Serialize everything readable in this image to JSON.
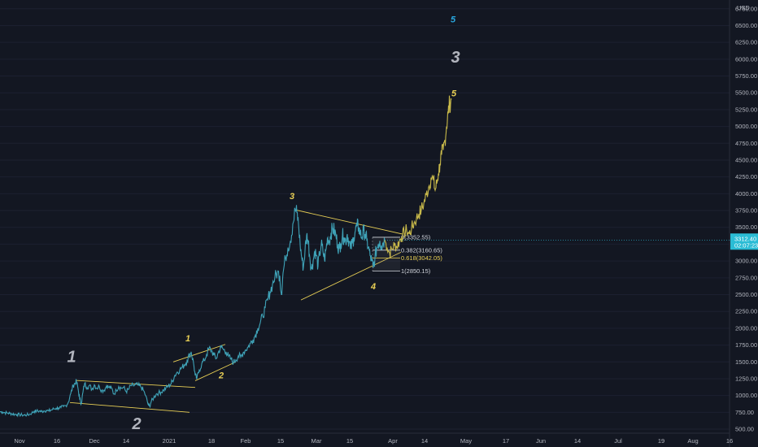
{
  "chart_data": {
    "type": "line",
    "currency": "USD",
    "x_ticks": [
      "Nov",
      "16",
      "Dec",
      "14",
      "2021",
      "18",
      "Feb",
      "15",
      "Mar",
      "15",
      "Apr",
      "14",
      "May",
      "17",
      "Jun",
      "14",
      "Jul",
      "19",
      "Aug",
      "16"
    ],
    "y_ticks": [
      "500.00",
      "750.00",
      "1000.00",
      "1250.00",
      "1500.00",
      "1750.00",
      "2000.00",
      "2250.00",
      "2500.00",
      "2750.00",
      "3000.00",
      "3250.00",
      "3500.00",
      "3750.00",
      "4000.00",
      "4250.00",
      "4500.00",
      "4750.00",
      "5000.00",
      "5250.00",
      "5500.00",
      "5750.00",
      "6000.00",
      "6250.00",
      "6500.00",
      "6750.00"
    ],
    "ylim": [
      440,
      6880
    ],
    "price_now": {
      "value": "3312.40",
      "countdown": "02:07:23"
    },
    "colors": {
      "historical": "#3fa3b8",
      "projection": "#c8b94a",
      "annotation": "#e8cf55",
      "background": "#131722",
      "price_tag": "#2abcd5"
    },
    "history": [
      [
        0,
        760
      ],
      [
        3,
        755
      ],
      [
        6,
        745
      ],
      [
        9,
        740
      ],
      [
        12,
        735
      ],
      [
        15,
        728
      ],
      [
        18,
        722
      ],
      [
        21,
        718
      ],
      [
        24,
        714
      ],
      [
        27,
        712
      ],
      [
        30,
        708
      ],
      [
        33,
        712
      ],
      [
        36,
        718
      ],
      [
        39,
        740
      ],
      [
        42,
        765
      ],
      [
        45,
        770
      ],
      [
        48,
        768
      ],
      [
        51,
        762
      ],
      [
        54,
        772
      ],
      [
        57,
        780
      ],
      [
        60,
        770
      ],
      [
        63,
        785
      ],
      [
        66,
        800
      ],
      [
        69,
        810
      ],
      [
        72,
        815
      ],
      [
        75,
        820
      ],
      [
        78,
        835
      ],
      [
        81,
        850
      ],
      [
        84,
        900
      ],
      [
        87,
        1030
      ],
      [
        90,
        1150
      ],
      [
        92,
        1180
      ],
      [
        94,
        1210
      ],
      [
        96,
        1100
      ],
      [
        98,
        950
      ],
      [
        100,
        880
      ],
      [
        102,
        1050
      ],
      [
        104,
        1180
      ],
      [
        107,
        1120
      ],
      [
        110,
        1150
      ],
      [
        113,
        1090
      ],
      [
        116,
        1160
      ],
      [
        119,
        1110
      ],
      [
        122,
        1140
      ],
      [
        125,
        1075
      ],
      [
        128,
        1080
      ],
      [
        131,
        1145
      ],
      [
        134,
        1120
      ],
      [
        137,
        1110
      ],
      [
        140,
        1020
      ],
      [
        143,
        1080
      ],
      [
        146,
        1135
      ],
      [
        149,
        1110
      ],
      [
        152,
        1120
      ],
      [
        155,
        1060
      ],
      [
        158,
        1090
      ],
      [
        161,
        1150
      ],
      [
        164,
        1145
      ],
      [
        167,
        1165
      ],
      [
        170,
        1150
      ],
      [
        173,
        1130
      ],
      [
        176,
        1085
      ],
      [
        179,
        1000
      ],
      [
        182,
        870
      ],
      [
        184,
        840
      ],
      [
        186,
        910
      ],
      [
        189,
        970
      ],
      [
        192,
        1020
      ],
      [
        195,
        1040
      ],
      [
        198,
        1050
      ],
      [
        201,
        1080
      ],
      [
        204,
        1110
      ],
      [
        207,
        1140
      ],
      [
        210,
        1170
      ],
      [
        212,
        1220
      ],
      [
        215,
        1300
      ],
      [
        218,
        1350
      ],
      [
        221,
        1380
      ],
      [
        224,
        1420
      ],
      [
        227,
        1460
      ],
      [
        230,
        1520
      ],
      [
        233,
        1600
      ],
      [
        235,
        1650
      ],
      [
        238,
        1480
      ],
      [
        240,
        1300
      ],
      [
        242,
        1250
      ],
      [
        245,
        1380
      ],
      [
        248,
        1470
      ],
      [
        251,
        1520
      ],
      [
        254,
        1610
      ],
      [
        257,
        1700
      ],
      [
        260,
        1670
      ],
      [
        263,
        1600
      ],
      [
        266,
        1550
      ],
      [
        269,
        1660
      ],
      [
        272,
        1720
      ],
      [
        275,
        1680
      ],
      [
        278,
        1650
      ],
      [
        281,
        1580
      ],
      [
        284,
        1540
      ],
      [
        287,
        1490
      ],
      [
        290,
        1530
      ],
      [
        293,
        1590
      ],
      [
        296,
        1570
      ],
      [
        299,
        1640
      ],
      [
        302,
        1680
      ],
      [
        305,
        1720
      ],
      [
        308,
        1780
      ],
      [
        311,
        1830
      ],
      [
        314,
        1900
      ],
      [
        317,
        2000
      ],
      [
        320,
        2080
      ],
      [
        323,
        2180
      ],
      [
        326,
        2300
      ],
      [
        329,
        2420
      ],
      [
        332,
        2540
      ],
      [
        335,
        2650
      ],
      [
        338,
        2760
      ],
      [
        341,
        2830
      ],
      [
        344,
        2780
      ],
      [
        346,
        2500
      ],
      [
        348,
        2820
      ],
      [
        351,
        3050
      ],
      [
        354,
        3200
      ],
      [
        357,
        3300
      ],
      [
        360,
        3550
      ],
      [
        363,
        3760
      ],
      [
        365,
        3720
      ],
      [
        367,
        3550
      ],
      [
        369,
        3250
      ],
      [
        371,
        3050
      ],
      [
        373,
        2900
      ],
      [
        375,
        3150
      ],
      [
        377,
        3380
      ],
      [
        379,
        3300
      ],
      [
        381,
        3050
      ],
      [
        383,
        2880
      ],
      [
        385,
        3000
      ],
      [
        387,
        3150
      ],
      [
        389,
        3080
      ],
      [
        391,
        2920
      ],
      [
        393,
        3100
      ],
      [
        395,
        3250
      ],
      [
        397,
        3150
      ],
      [
        399,
        3020
      ],
      [
        401,
        3180
      ],
      [
        403,
        3350
      ],
      [
        405,
        3300
      ],
      [
        407,
        3420
      ],
      [
        409,
        3480
      ],
      [
        411,
        3450
      ],
      [
        413,
        3380
      ],
      [
        415,
        3250
      ],
      [
        417,
        3180
      ],
      [
        419,
        3260
      ],
      [
        421,
        3380
      ],
      [
        423,
        3350
      ],
      [
        425,
        3300
      ],
      [
        427,
        3400
      ],
      [
        429,
        3300
      ],
      [
        431,
        3180
      ],
      [
        433,
        3260
      ],
      [
        435,
        3350
      ],
      [
        437,
        3450
      ],
      [
        439,
        3520
      ],
      [
        441,
        3500
      ],
      [
        443,
        3410
      ],
      [
        445,
        3350
      ],
      [
        447,
        3450
      ],
      [
        449,
        3400
      ],
      [
        451,
        3300
      ],
      [
        453,
        3200
      ],
      [
        455,
        3080
      ],
      [
        457,
        3000
      ],
      [
        459,
        2900
      ],
      [
        461,
        3050
      ],
      [
        463,
        3180
      ],
      [
        465,
        3250
      ],
      [
        467,
        3300
      ],
      [
        469,
        3230
      ],
      [
        471,
        3270
      ],
      [
        473,
        3312
      ]
    ],
    "projection": [
      [
        473,
        3312
      ],
      [
        476,
        3200
      ],
      [
        479,
        3120
      ],
      [
        482,
        3180
      ],
      [
        485,
        3240
      ],
      [
        488,
        3210
      ],
      [
        491,
        3300
      ],
      [
        494,
        3360
      ],
      [
        497,
        3420
      ],
      [
        500,
        3460
      ],
      [
        503,
        3400
      ],
      [
        506,
        3480
      ],
      [
        509,
        3560
      ],
      [
        512,
        3630
      ],
      [
        515,
        3700
      ],
      [
        518,
        3760
      ],
      [
        521,
        3850
      ],
      [
        524,
        3980
      ],
      [
        527,
        4100
      ],
      [
        530,
        4240
      ],
      [
        533,
        4200
      ],
      [
        535,
        4050
      ],
      [
        537,
        4150
      ],
      [
        539,
        4300
      ],
      [
        541,
        4450
      ],
      [
        543,
        4580
      ],
      [
        545,
        4650
      ],
      [
        547,
        4800
      ],
      [
        549,
        5000
      ],
      [
        551,
        5200
      ],
      [
        553,
        5350
      ],
      [
        555,
        5400
      ]
    ],
    "triangle_lines": [
      {
        "from": [
          363,
          3760
        ],
        "to": [
          495,
          3400
        ]
      },
      {
        "from": [
          370,
          2420
        ],
        "to": [
          493,
          3130
        ]
      }
    ],
    "channels": [
      {
        "from": [
          93,
          1225
        ],
        "to": [
          240,
          1120
        ]
      },
      {
        "from": [
          86,
          895
        ],
        "to": [
          233,
          750
        ]
      },
      {
        "from": [
          213,
          1500
        ],
        "to": [
          277,
          1760
        ]
      },
      {
        "from": [
          240,
          1220
        ],
        "to": [
          290,
          1500
        ]
      }
    ],
    "fib_levels": [
      {
        "label": "0(3352.55)",
        "value": 3352.55,
        "color": "#d1d4dc"
      },
      {
        "label": "0.382(3160.65)",
        "value": 3160.65,
        "color": "#d1d4dc"
      },
      {
        "label": "0.618(3042.05)",
        "value": 3042.05,
        "color": "#e8cf55"
      },
      {
        "label": "1(2850.15)",
        "value": 2850.15,
        "color": "#d1d4dc"
      }
    ],
    "wave_labels": [
      {
        "text": "1",
        "x": 88,
        "y": 1500,
        "style": "white"
      },
      {
        "text": "2",
        "x": 168,
        "y": 500,
        "style": "white"
      },
      {
        "text": "3",
        "x": 560,
        "y": 5950,
        "style": "white"
      },
      {
        "text": "1",
        "x": 231,
        "y": 1805,
        "style": "yellow"
      },
      {
        "text": "2",
        "x": 272,
        "y": 1255,
        "style": "yellow"
      },
      {
        "text": "3",
        "x": 359,
        "y": 3920,
        "style": "yellow"
      },
      {
        "text": "4",
        "x": 459,
        "y": 2580,
        "style": "yellow"
      },
      {
        "text": "5",
        "x": 558,
        "y": 5450,
        "style": "yellow"
      },
      {
        "text": "5",
        "x": 557,
        "y": 6550,
        "style": "blue"
      }
    ]
  }
}
